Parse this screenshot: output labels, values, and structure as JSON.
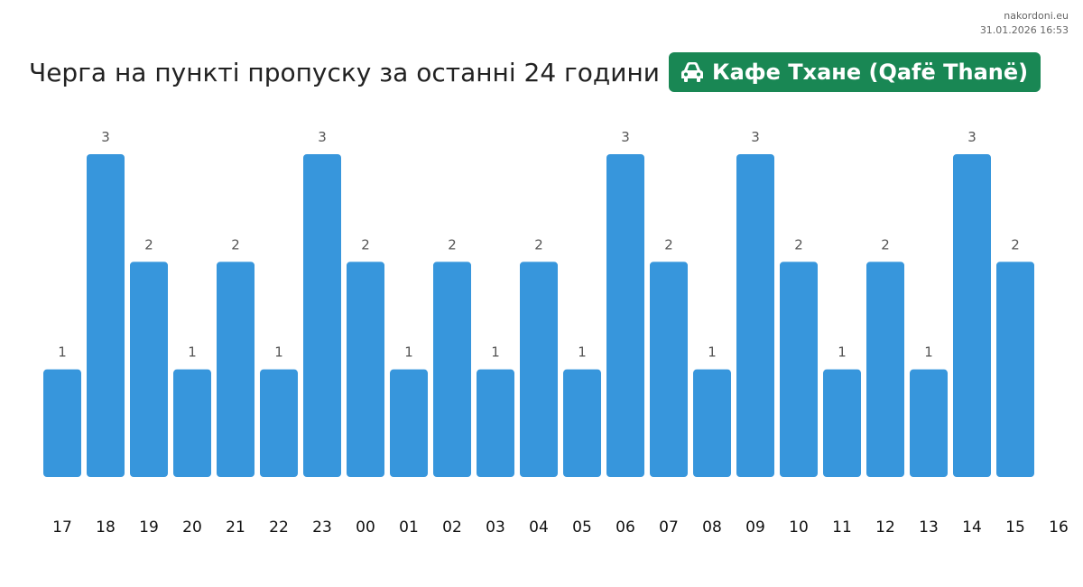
{
  "site": {
    "name": "nakordoni.eu",
    "datetime": "31.01.2026 16:53"
  },
  "header": {
    "title": "Черга на пункті пропуску за останні 24 години",
    "checkpoint": "Кафе Тхане (Qafë Thanë)",
    "checkpoint_icon": "car-icon"
  },
  "colors": {
    "bar": "#3796dc",
    "badge": "#198754",
    "label": "#555555",
    "tick": "#111111"
  },
  "chart_data": {
    "type": "bar",
    "title": "Черга на пункті пропуску за останні 24 години",
    "categories": [
      "17",
      "18",
      "19",
      "20",
      "21",
      "22",
      "23",
      "00",
      "01",
      "02",
      "03",
      "04",
      "05",
      "06",
      "07",
      "08",
      "09",
      "10",
      "11",
      "12",
      "13",
      "14",
      "15"
    ],
    "x_tick_labels": [
      "17",
      "18",
      "19",
      "20",
      "21",
      "22",
      "23",
      "00",
      "01",
      "02",
      "03",
      "04",
      "05",
      "06",
      "07",
      "08",
      "09",
      "10",
      "11",
      "12",
      "13",
      "14",
      "15",
      "16"
    ],
    "values": [
      1,
      3,
      2,
      1,
      2,
      1,
      3,
      2,
      1,
      2,
      1,
      2,
      1,
      3,
      2,
      1,
      3,
      2,
      1,
      2,
      1,
      3,
      2
    ],
    "ylim": [
      0,
      3
    ],
    "data_labels": true,
    "grid": false,
    "legend": "none"
  }
}
